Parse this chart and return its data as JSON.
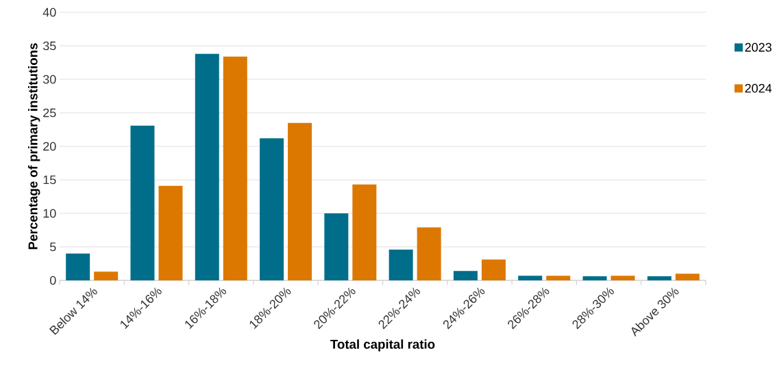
{
  "chart_data": {
    "type": "bar",
    "xlabel": "Total capital ratio",
    "ylabel": "Percentage of primary institutions",
    "categories": [
      "Below 14%",
      "14%-16%",
      "16%-18%",
      "18%-20%",
      "20%-22%",
      "22%-24%",
      "24%-26%",
      "26%-28%",
      "28%-30%",
      "Above 30%"
    ],
    "series": [
      {
        "name": "2023",
        "color": "#006e8a",
        "values": [
          4.0,
          23.1,
          33.8,
          21.2,
          10.0,
          4.6,
          1.4,
          0.7,
          0.6,
          0.6
        ]
      },
      {
        "name": "2024",
        "color": "#dc7800",
        "values": [
          1.3,
          14.1,
          33.4,
          23.5,
          14.3,
          7.9,
          3.1,
          0.7,
          0.7,
          1.0
        ]
      }
    ],
    "ylim": [
      0,
      40
    ],
    "yticks": [
      0,
      5,
      10,
      15,
      20,
      25,
      30,
      35,
      40
    ],
    "grid": "y",
    "legend": "right"
  }
}
